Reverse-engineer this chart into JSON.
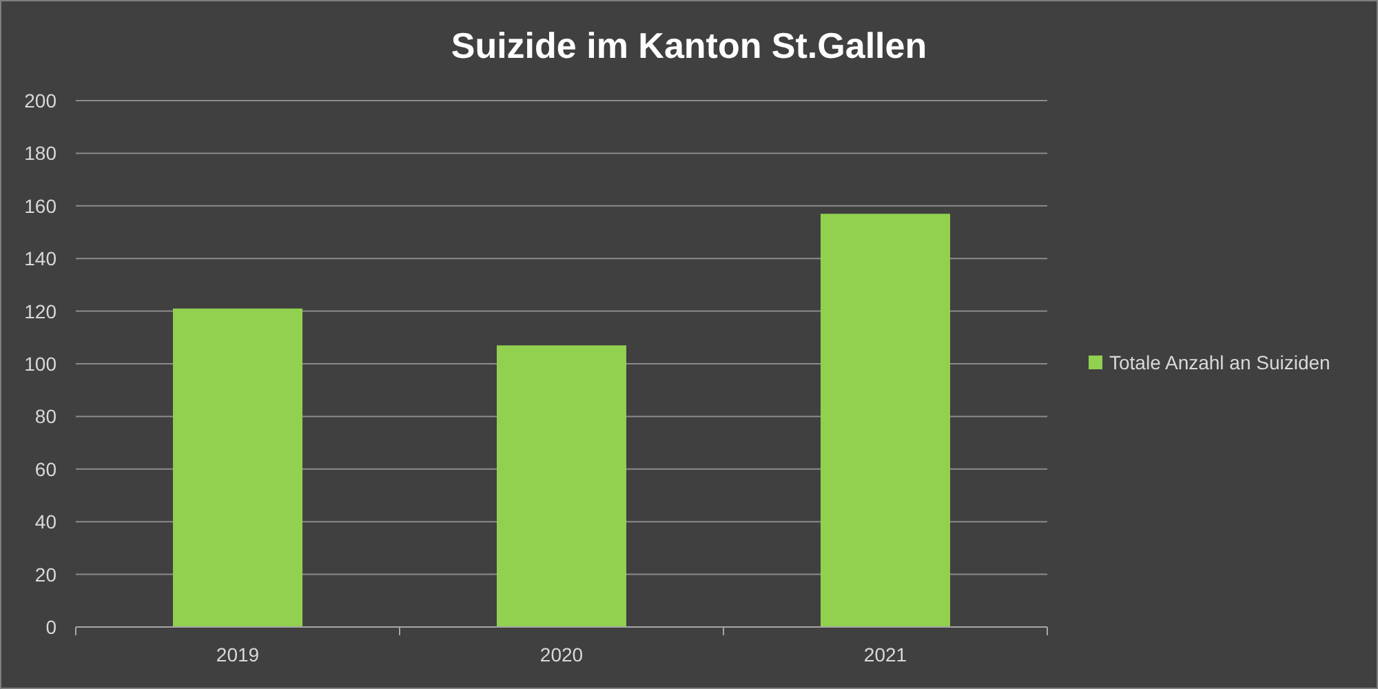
{
  "chart_data": {
    "type": "bar",
    "title": "Suizide im Kanton St.Gallen",
    "categories": [
      "2019",
      "2020",
      "2021"
    ],
    "series": [
      {
        "name": "Totale Anzahl an Suiziden",
        "color": "#92d050",
        "values": [
          121,
          107,
          157
        ]
      }
    ],
    "ylim": [
      0,
      200
    ],
    "yticks": [
      0,
      20,
      40,
      60,
      80,
      100,
      120,
      140,
      160,
      180,
      200
    ],
    "grid": "y",
    "legend": "right"
  }
}
